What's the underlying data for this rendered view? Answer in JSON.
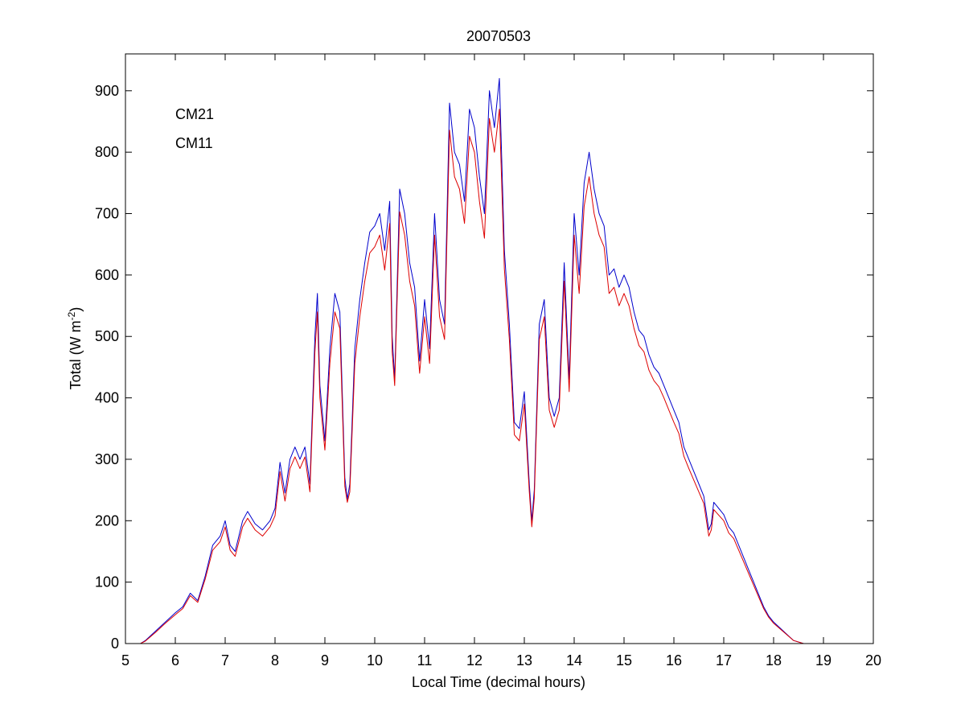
{
  "chart_data": {
    "type": "line",
    "title": "20070503",
    "xlabel": "Local Time (decimal hours)",
    "ylabel": {
      "prefix": "Total (W m",
      "superscript": "-2",
      "suffix": ")"
    },
    "xlim": [
      5,
      20
    ],
    "ylim": [
      0,
      960
    ],
    "xticks": [
      5,
      6,
      7,
      8,
      9,
      10,
      11,
      12,
      13,
      14,
      15,
      16,
      17,
      18,
      19,
      20
    ],
    "yticks": [
      0,
      100,
      200,
      300,
      400,
      500,
      600,
      700,
      800,
      900
    ],
    "grid": false,
    "legend_position": "top-left",
    "series": [
      {
        "name": "CM21",
        "color": "#0000cc",
        "x": [
          5.3,
          5.4,
          5.6,
          5.8,
          6.0,
          6.15,
          6.3,
          6.45,
          6.6,
          6.75,
          6.9,
          7.0,
          7.1,
          7.2,
          7.35,
          7.45,
          7.6,
          7.75,
          7.9,
          8.0,
          8.1,
          8.15,
          8.2,
          8.3,
          8.4,
          8.5,
          8.6,
          8.7,
          8.8,
          8.85,
          8.9,
          9.0,
          9.1,
          9.2,
          9.3,
          9.4,
          9.45,
          9.5,
          9.6,
          9.7,
          9.8,
          9.9,
          10.0,
          10.1,
          10.2,
          10.3,
          10.35,
          10.4,
          10.5,
          10.6,
          10.7,
          10.8,
          10.9,
          11.0,
          11.1,
          11.2,
          11.3,
          11.4,
          11.5,
          11.6,
          11.7,
          11.8,
          11.9,
          12.0,
          12.1,
          12.2,
          12.3,
          12.4,
          12.5,
          12.6,
          12.7,
          12.8,
          12.9,
          13.0,
          13.1,
          13.15,
          13.2,
          13.3,
          13.4,
          13.5,
          13.6,
          13.7,
          13.8,
          13.9,
          14.0,
          14.1,
          14.2,
          14.3,
          14.4,
          14.5,
          14.6,
          14.7,
          14.8,
          14.9,
          15.0,
          15.1,
          15.2,
          15.3,
          15.4,
          15.5,
          15.6,
          15.7,
          15.8,
          15.9,
          16.0,
          16.1,
          16.2,
          16.3,
          16.4,
          16.5,
          16.6,
          16.7,
          16.75,
          16.8,
          16.9,
          17.0,
          17.1,
          17.2,
          17.3,
          17.4,
          17.5,
          17.6,
          17.7,
          17.8,
          17.9,
          18.0,
          18.2,
          18.4,
          18.6,
          18.75
        ],
        "y": [
          0,
          5,
          20,
          35,
          50,
          60,
          82,
          70,
          110,
          160,
          175,
          200,
          160,
          150,
          200,
          215,
          195,
          185,
          200,
          220,
          295,
          270,
          245,
          300,
          320,
          300,
          320,
          260,
          500,
          570,
          420,
          330,
          480,
          570,
          540,
          270,
          235,
          260,
          480,
          560,
          620,
          670,
          680,
          700,
          640,
          720,
          500,
          430,
          740,
          700,
          620,
          580,
          460,
          560,
          480,
          700,
          560,
          520,
          880,
          800,
          780,
          720,
          870,
          840,
          760,
          700,
          900,
          840,
          920,
          640,
          520,
          360,
          350,
          410,
          260,
          200,
          250,
          520,
          560,
          400,
          370,
          400,
          620,
          430,
          700,
          600,
          750,
          800,
          740,
          700,
          680,
          600,
          610,
          580,
          600,
          580,
          540,
          510,
          500,
          470,
          450,
          440,
          420,
          400,
          380,
          360,
          320,
          300,
          280,
          260,
          240,
          185,
          195,
          230,
          220,
          210,
          190,
          180,
          160,
          140,
          120,
          100,
          80,
          60,
          45,
          35,
          20,
          5,
          0,
          0
        ]
      },
      {
        "name": "CM11",
        "color": "#dd0000",
        "x": [
          5.3,
          5.4,
          5.6,
          5.8,
          6.0,
          6.15,
          6.3,
          6.45,
          6.6,
          6.75,
          6.9,
          7.0,
          7.1,
          7.2,
          7.35,
          7.45,
          7.6,
          7.75,
          7.9,
          8.0,
          8.1,
          8.15,
          8.2,
          8.3,
          8.4,
          8.5,
          8.6,
          8.7,
          8.8,
          8.85,
          8.9,
          9.0,
          9.1,
          9.2,
          9.3,
          9.4,
          9.45,
          9.5,
          9.6,
          9.7,
          9.8,
          9.9,
          10.0,
          10.1,
          10.2,
          10.3,
          10.35,
          10.4,
          10.5,
          10.6,
          10.7,
          10.8,
          10.9,
          11.0,
          11.1,
          11.2,
          11.3,
          11.4,
          11.5,
          11.6,
          11.7,
          11.8,
          11.9,
          12.0,
          12.1,
          12.2,
          12.3,
          12.4,
          12.5,
          12.6,
          12.7,
          12.8,
          12.9,
          13.0,
          13.1,
          13.15,
          13.2,
          13.3,
          13.4,
          13.5,
          13.6,
          13.7,
          13.8,
          13.9,
          14.0,
          14.1,
          14.2,
          14.3,
          14.4,
          14.5,
          14.6,
          14.7,
          14.8,
          14.9,
          15.0,
          15.1,
          15.2,
          15.3,
          15.4,
          15.5,
          15.6,
          15.7,
          15.8,
          15.9,
          16.0,
          16.1,
          16.2,
          16.3,
          16.4,
          16.5,
          16.6,
          16.7,
          16.75,
          16.8,
          16.9,
          17.0,
          17.1,
          17.2,
          17.3,
          17.4,
          17.5,
          17.6,
          17.7,
          17.8,
          17.9,
          18.0,
          18.2,
          18.4,
          18.6,
          18.75
        ],
        "y": [
          0,
          4,
          18,
          33,
          47,
          57,
          78,
          67,
          105,
          152,
          166,
          190,
          152,
          142,
          190,
          204,
          185,
          175,
          190,
          208,
          280,
          256,
          232,
          285,
          304,
          285,
          304,
          247,
          475,
          540,
          400,
          315,
          456,
          540,
          513,
          256,
          230,
          247,
          456,
          532,
          590,
          636,
          646,
          665,
          608,
          684,
          475,
          420,
          703,
          665,
          590,
          550,
          440,
          532,
          456,
          665,
          532,
          495,
          836,
          760,
          740,
          684,
          826,
          800,
          720,
          660,
          855,
          800,
          870,
          610,
          495,
          340,
          330,
          390,
          247,
          190,
          237,
          495,
          532,
          380,
          352,
          380,
          590,
          410,
          665,
          570,
          712,
          760,
          700,
          665,
          646,
          570,
          580,
          550,
          570,
          550,
          513,
          485,
          475,
          445,
          428,
          418,
          400,
          380,
          360,
          342,
          305,
          285,
          266,
          247,
          228,
          175,
          185,
          218,
          209,
          200,
          180,
          171,
          152,
          133,
          114,
          95,
          76,
          57,
          43,
          33,
          19,
          5,
          0,
          0
        ]
      }
    ]
  }
}
